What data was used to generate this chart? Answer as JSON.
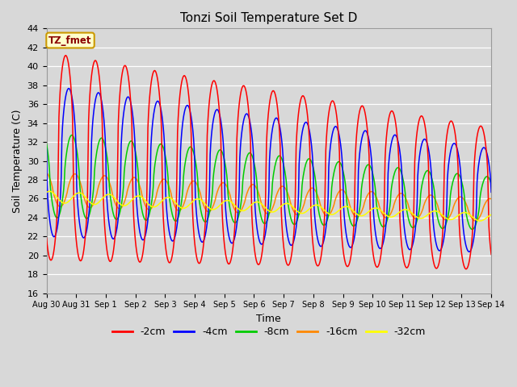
{
  "title": "Tonzi Soil Temperature Set D",
  "xlabel": "Time",
  "ylabel": "Soil Temperature (C)",
  "ylim": [
    16,
    44
  ],
  "yticks": [
    16,
    18,
    20,
    22,
    24,
    26,
    28,
    30,
    32,
    34,
    36,
    38,
    40,
    42,
    44
  ],
  "background_color": "#d8d8d8",
  "plot_bg_color": "#d8d8d8",
  "legend_label": "TZ_fmet",
  "series_labels": [
    "-2cm",
    "-4cm",
    "-8cm",
    "-16cm",
    "-32cm"
  ],
  "series_colors": [
    "#ff0000",
    "#0000ff",
    "#00cc00",
    "#ff8800",
    "#ffff00"
  ],
  "x_tick_labels": [
    "Aug 30",
    "Aug 31",
    "Sep 1",
    "Sep 2",
    "Sep 3",
    "Sep 4",
    "Sep 5",
    "Sep 6",
    "Sep 7",
    "Sep 8",
    "Sep 9",
    "Sep 10",
    "Sep 11",
    "Sep 12",
    "Sep 13",
    "Sep 14"
  ]
}
